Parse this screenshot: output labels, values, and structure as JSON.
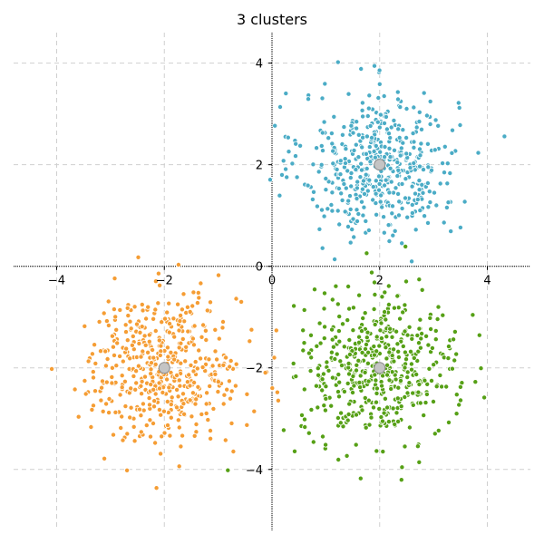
{
  "chart_data": {
    "type": "scatter",
    "title": "3 clusters",
    "xlabel": "",
    "ylabel": "",
    "xlim": [
      -4.8,
      4.8
    ],
    "ylim": [
      -5.2,
      4.6
    ],
    "xticks": [
      -4,
      -2,
      0,
      2,
      4
    ],
    "yticks": [
      -4,
      -2,
      0,
      2,
      4
    ],
    "xtick_labels": [
      "−4",
      "−2",
      "0",
      "2",
      "4"
    ],
    "ytick_labels": [
      "−4",
      "−2",
      "0",
      "2",
      "4"
    ],
    "grid": true,
    "legend": "none",
    "point_edge_color": "#ffffff",
    "clusters": [
      {
        "color": "#4bacc6",
        "center": [
          2,
          2
        ],
        "std": 0.72,
        "n": 500
      },
      {
        "color": "#f59d34",
        "center": [
          -2,
          -2
        ],
        "std": 0.72,
        "n": 500
      },
      {
        "color": "#56a016",
        "center": [
          2,
          -2
        ],
        "std": 0.72,
        "n": 500
      }
    ],
    "centroids": {
      "color": "#c4c4c4",
      "edge_color": "#8a8a8a",
      "points": [
        [
          2,
          2
        ],
        [
          -2,
          -2
        ],
        [
          2,
          -2
        ]
      ]
    }
  }
}
